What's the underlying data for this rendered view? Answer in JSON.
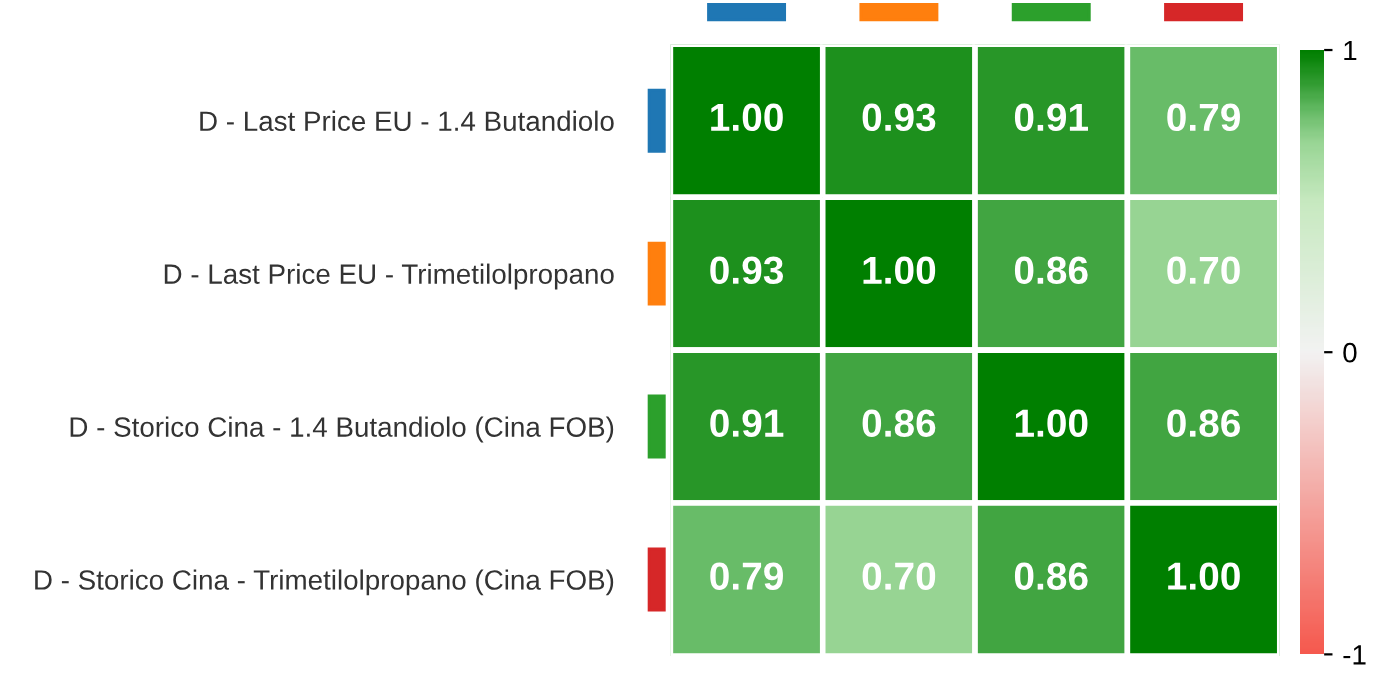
{
  "chart_data": {
    "type": "heatmap",
    "categories": [
      null,
      null,
      null,
      null
    ],
    "y_categories": [
      "D - Last Price EU - 1.4 Butandiolo",
      "D - Last Price EU - Trimetilolpropano",
      "D - Storico Cina - 1.4 Butandiolo (Cina FOB)",
      "D - Storico Cina - Trimetilolpropano (Cina FOB)"
    ],
    "colors": [
      "#1f77b4",
      "#ff7f0e",
      "#2ca02c",
      "#d62728"
    ],
    "cells": [
      [
        1.0,
        0.93,
        0.91,
        0.79
      ],
      [
        0.93,
        1.0,
        0.86,
        0.7
      ],
      [
        0.91,
        0.86,
        1.0,
        0.86
      ],
      [
        0.79,
        0.7,
        0.86,
        1.0
      ]
    ],
    "cell_labels": [
      [
        "1.00",
        "0.93",
        "0.91",
        "0.79"
      ],
      [
        "0.93",
        "1.00",
        "0.86",
        "0.70"
      ],
      [
        "0.91",
        "0.86",
        "1.00",
        "0.86"
      ],
      [
        "0.79",
        "0.70",
        "0.86",
        "1.00"
      ]
    ],
    "clim": [
      -1,
      1
    ],
    "cticks": [
      -1,
      0,
      1
    ]
  }
}
